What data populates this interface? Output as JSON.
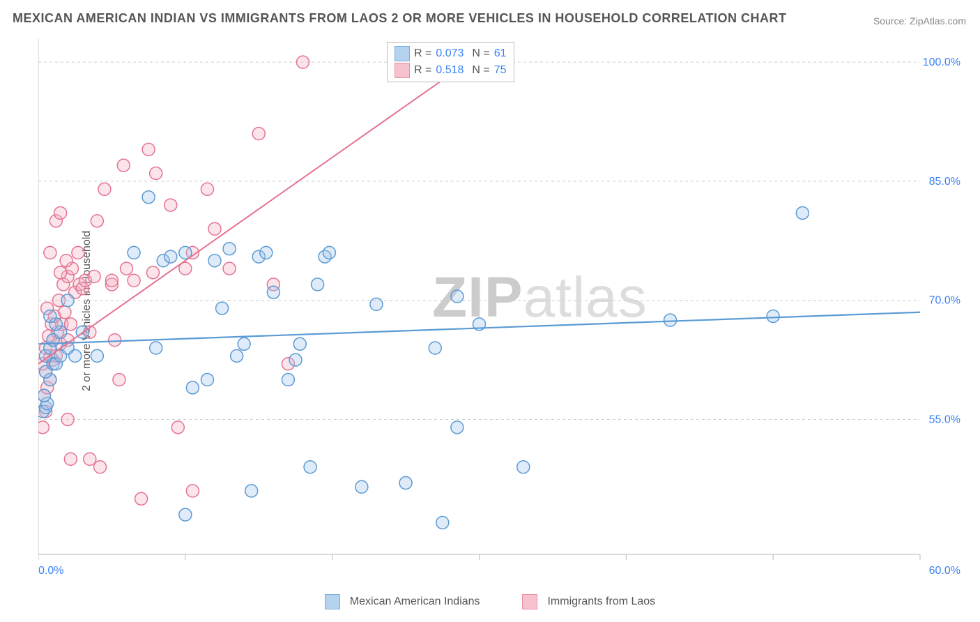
{
  "title": "MEXICAN AMERICAN INDIAN VS IMMIGRANTS FROM LAOS 2 OR MORE VEHICLES IN HOUSEHOLD CORRELATION CHART",
  "source": "Source: ZipAtlas.com",
  "ylabel": "2 or more Vehicles in Household",
  "watermark_bold": "ZIP",
  "watermark_light": "atlas",
  "chart": {
    "type": "scatter",
    "background_color": "#ffffff",
    "grid_color": "#cccccc",
    "axis_color": "#bbbbbb",
    "text_color": "#555555",
    "value_color": "#3b82f6",
    "xlim": [
      0,
      60
    ],
    "ylim": [
      38,
      103
    ],
    "xtick_values": [
      0,
      10,
      20,
      30,
      40,
      50,
      60
    ],
    "xtick_labels": [
      "0.0%",
      "",
      "",
      "",
      "",
      "",
      "60.0%"
    ],
    "ytick_values": [
      55,
      70,
      85,
      100
    ],
    "ytick_labels": [
      "55.0%",
      "70.0%",
      "85.0%",
      "100.0%"
    ],
    "marker_radius": 9,
    "marker_fill_opacity": 0.35,
    "marker_stroke_width": 1.5,
    "series": [
      {
        "name": "Mexican American Indians",
        "color": "#5b9bd5",
        "fill": "#a3c7ea",
        "R": "0.073",
        "N": "61",
        "trend": {
          "x1": 0,
          "y1": 64.5,
          "x2": 60,
          "y2": 68.5,
          "width": 2.2
        },
        "points": [
          [
            0.3,
            56
          ],
          [
            0.5,
            56.5
          ],
          [
            0.6,
            57
          ],
          [
            0.4,
            58
          ],
          [
            0.8,
            60
          ],
          [
            0.5,
            61
          ],
          [
            1.0,
            62
          ],
          [
            1.2,
            62
          ],
          [
            0.5,
            63
          ],
          [
            1.5,
            63
          ],
          [
            0.8,
            64
          ],
          [
            2.0,
            64
          ],
          [
            1.0,
            65
          ],
          [
            1.5,
            66
          ],
          [
            1.2,
            67
          ],
          [
            2.5,
            63
          ],
          [
            0.8,
            68
          ],
          [
            3.0,
            66
          ],
          [
            2.0,
            70
          ],
          [
            4.0,
            63
          ],
          [
            6.5,
            76
          ],
          [
            7.5,
            83
          ],
          [
            8.0,
            64
          ],
          [
            8.5,
            75
          ],
          [
            9.0,
            75.5
          ],
          [
            10.0,
            76
          ],
          [
            10.0,
            43
          ],
          [
            10.5,
            59
          ],
          [
            11.5,
            60
          ],
          [
            12.0,
            75
          ],
          [
            12.5,
            69
          ],
          [
            13.0,
            76.5
          ],
          [
            13.5,
            63
          ],
          [
            14.0,
            64.5
          ],
          [
            14.5,
            46
          ],
          [
            15.0,
            75.5
          ],
          [
            15.5,
            76
          ],
          [
            16.0,
            71
          ],
          [
            17.0,
            60
          ],
          [
            17.5,
            62.5
          ],
          [
            17.8,
            64.5
          ],
          [
            18.5,
            49
          ],
          [
            19.0,
            72
          ],
          [
            19.5,
            75.5
          ],
          [
            19.8,
            76
          ],
          [
            22.0,
            46.5
          ],
          [
            23.0,
            69.5
          ],
          [
            25.0,
            47
          ],
          [
            27.0,
            64
          ],
          [
            27.5,
            42
          ],
          [
            28.5,
            70.5
          ],
          [
            28.5,
            54
          ],
          [
            30.0,
            67
          ],
          [
            33.0,
            49
          ],
          [
            43.0,
            67.5
          ],
          [
            50.0,
            68
          ],
          [
            52.0,
            81
          ]
        ]
      },
      {
        "name": "Immigrants from Laos",
        "color": "#e57390",
        "fill": "#f3b3c3",
        "R": "0.518",
        "N": "75",
        "trend": {
          "x1": 0,
          "y1": 62,
          "x2": 30,
          "y2": 101,
          "width": 2.0
        },
        "points": [
          [
            0.3,
            54
          ],
          [
            0.5,
            56
          ],
          [
            0.4,
            58
          ],
          [
            0.6,
            59
          ],
          [
            0.8,
            60
          ],
          [
            0.5,
            61
          ],
          [
            0.3,
            62
          ],
          [
            1.0,
            62.5
          ],
          [
            0.8,
            63
          ],
          [
            1.2,
            63
          ],
          [
            0.5,
            64
          ],
          [
            1.5,
            64.5
          ],
          [
            1.0,
            65
          ],
          [
            0.7,
            65.5
          ],
          [
            1.3,
            66
          ],
          [
            0.9,
            67
          ],
          [
            1.6,
            67
          ],
          [
            2.0,
            65
          ],
          [
            1.1,
            68
          ],
          [
            1.8,
            68.5
          ],
          [
            2.2,
            67
          ],
          [
            0.6,
            69
          ],
          [
            1.4,
            70
          ],
          [
            2.5,
            71
          ],
          [
            1.7,
            72
          ],
          [
            2.0,
            73
          ],
          [
            2.8,
            72
          ],
          [
            1.5,
            73.5
          ],
          [
            3.0,
            71.5
          ],
          [
            2.3,
            74
          ],
          [
            1.9,
            75
          ],
          [
            2.7,
            76
          ],
          [
            3.2,
            72.5
          ],
          [
            1.2,
            80
          ],
          [
            3.5,
            66
          ],
          [
            0.8,
            76
          ],
          [
            1.5,
            81
          ],
          [
            3.8,
            73
          ],
          [
            4.0,
            80
          ],
          [
            2.0,
            55
          ],
          [
            2.2,
            50
          ],
          [
            3.5,
            50
          ],
          [
            4.2,
            49
          ],
          [
            4.5,
            84
          ],
          [
            5.0,
            72
          ],
          [
            5.0,
            72.5
          ],
          [
            5.2,
            65
          ],
          [
            5.5,
            60
          ],
          [
            5.8,
            87
          ],
          [
            6.0,
            74
          ],
          [
            6.5,
            72.5
          ],
          [
            7.0,
            45
          ],
          [
            7.5,
            89
          ],
          [
            7.8,
            73.5
          ],
          [
            8.0,
            86
          ],
          [
            9.0,
            82
          ],
          [
            9.5,
            54
          ],
          [
            10.0,
            74
          ],
          [
            10.5,
            46
          ],
          [
            10.5,
            76
          ],
          [
            11.5,
            84
          ],
          [
            12.0,
            79
          ],
          [
            13.0,
            74
          ],
          [
            15.0,
            91
          ],
          [
            16.0,
            72
          ],
          [
            17.0,
            62
          ],
          [
            18.0,
            100
          ],
          [
            30.0,
            100.5
          ]
        ]
      }
    ],
    "legend_top": {
      "r_label": "R =",
      "n_label": "N ="
    },
    "legend_bottom": {
      "label1": "Mexican American Indians",
      "label2": "Immigrants from Laos"
    }
  }
}
